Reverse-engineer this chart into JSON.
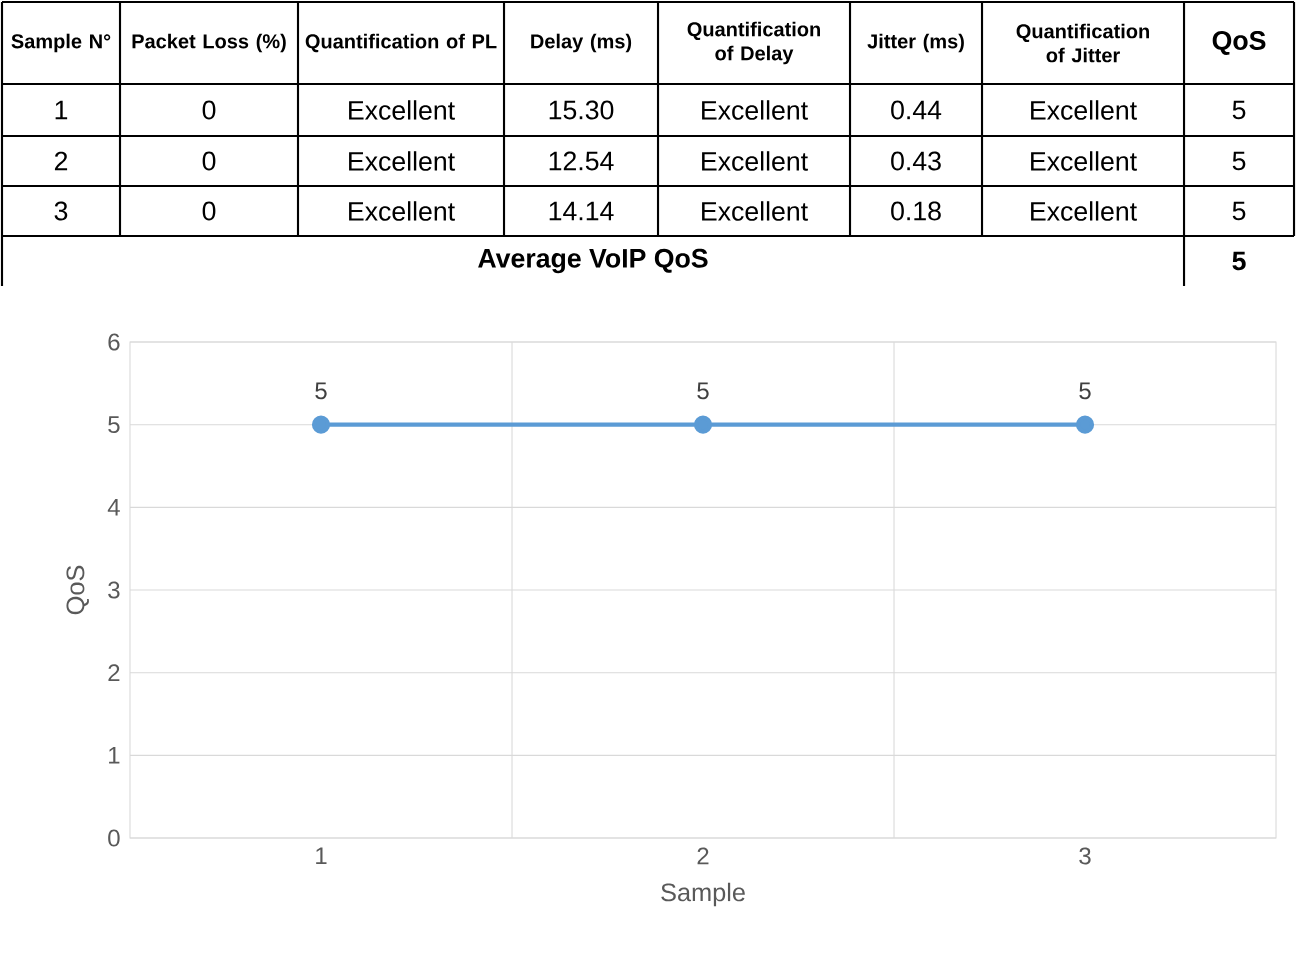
{
  "chart_data": [
    {
      "type": "other",
      "categories": [
        "Sample N°",
        "Packet Loss (%)",
        "Quantification of PL",
        "Delay (ms)",
        "Quantification of Delay",
        "Jitter (ms)",
        "Quantification of Jitter",
        "QoS"
      ],
      "cell_labels": [
        [
          "1",
          "0",
          "Excellent",
          "15.30",
          "Excellent",
          "0.44",
          "Excellent",
          "5"
        ],
        [
          "2",
          "0",
          "Excellent",
          "12.54",
          "Excellent",
          "0.43",
          "Excellent",
          "5"
        ],
        [
          "3",
          "0",
          "Excellent",
          "14.14",
          "Excellent",
          "0.18",
          "Excellent",
          "5"
        ],
        [
          "Average VoIP QoS",
          "5"
        ]
      ]
    },
    {
      "type": "line",
      "categories": [
        "1",
        "2",
        "3"
      ],
      "values": [
        5,
        5,
        5
      ],
      "color": "#5b9bd5",
      "xlabel": "Sample",
      "ylabel": "QoS",
      "ylim": [
        0,
        6
      ],
      "yticks": [
        0,
        1,
        2,
        3,
        4,
        5,
        6
      ],
      "grid": true,
      "marker": "circle",
      "line_style": "solid",
      "data_labels": true
    }
  ]
}
